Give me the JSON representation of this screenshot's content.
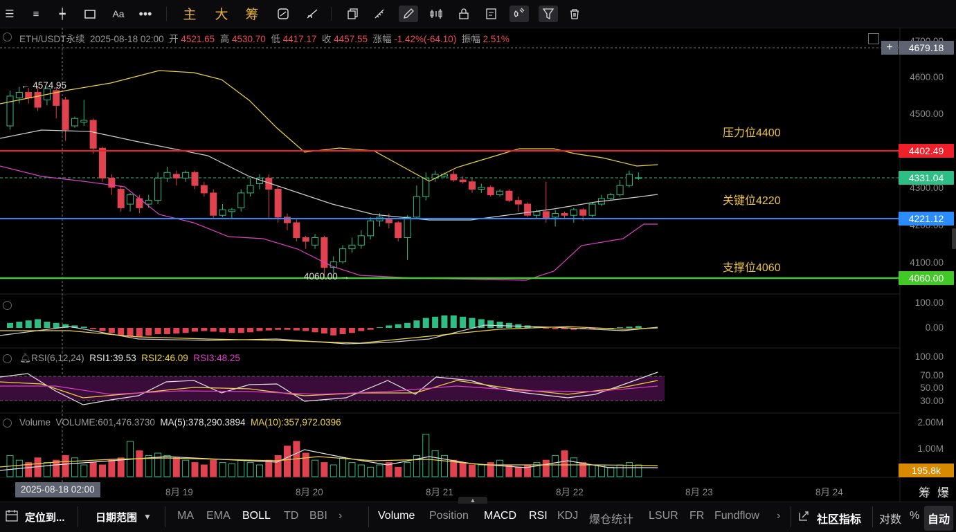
{
  "toolbar": {
    "chips": [
      "主",
      "大",
      "筹"
    ],
    "icons": [
      "menu-icon",
      "list-icon",
      "horizontal-line-icon",
      "rectangle-icon",
      "text-tool-icon",
      "more-icon",
      "refresh-icon",
      "measure-icon",
      "copy-icon",
      "ruler-icon",
      "pen-icon",
      "indicator-icon",
      "lock-icon",
      "note-icon",
      "magnet-icon",
      "filter-icon",
      "trash-icon"
    ]
  },
  "ohlc": {
    "symbol": "ETH/USDT永续",
    "datetime": "2025-08-18 02:00",
    "open_label": "开",
    "open": "4521.65",
    "high_label": "高",
    "high": "4530.70",
    "low_label": "低",
    "low": "4417.17",
    "close_label": "收",
    "close": "4457.55",
    "change_label": "涨幅",
    "change": "-1.42%(-64.10)",
    "amp_label": "振幅",
    "amp": "2.51%"
  },
  "price_axis": [
    "4700.00",
    "4600.00",
    "4500.00",
    "4300.00",
    "4200.00",
    "4100.00"
  ],
  "price_tags": {
    "crosshair": "4679.18",
    "resistance": "4402.49",
    "current": "4331.04",
    "key": "4221.12",
    "support": "4060.00"
  },
  "level_labels": {
    "resistance": "压力位4400",
    "key": "关键位4220",
    "support": "支撑位4060"
  },
  "annotations": {
    "high_marker": "← 4574.95",
    "low_marker": "4060.00 →"
  },
  "macd": {
    "axis": [
      "100.00",
      "0.00"
    ]
  },
  "rsi": {
    "title": "RSI(6,12,24)",
    "rsi1": "RSI1:39.53",
    "rsi2": "RSI2:46.09",
    "rsi3": "RSI3:48.25",
    "axis": [
      "100.00",
      "70.00",
      "50.00",
      "30.00"
    ]
  },
  "volume": {
    "title": "Volume",
    "value": "VOLUME:601,476.3730",
    "ma5": "MA(5):378,290.3894",
    "ma10": "MA(10):357,972.0396",
    "axis": [
      "2.00M",
      "1.00M"
    ],
    "tag": "195.8k"
  },
  "time_axis": {
    "cursor": "2025-08-18 02:00",
    "labels": [
      "8月 19",
      "8月 20",
      "8月 21",
      "8月 22",
      "8月 23",
      "8月 24"
    ],
    "right": [
      "筹",
      "爆"
    ]
  },
  "bottom": {
    "locate": "定位到...",
    "range": "日期范围",
    "main_ind": [
      "MA",
      "EMA",
      "BOLL",
      "TD",
      "BBI"
    ],
    "sub_ind": [
      "Volume",
      "Position",
      "MACD",
      "RSI",
      "KDJ",
      "爆仓统计",
      "LSUR",
      "FR",
      "Fundflow"
    ],
    "community": "社区指标",
    "log": "对数",
    "pct": "%",
    "auto": "自动"
  },
  "colors": {
    "up": "#2ebd85",
    "down": "#e0424f",
    "resistance": "#f0202a",
    "key": "#2b8cff",
    "support": "#42c928",
    "gold": "#f0c43c"
  }
}
